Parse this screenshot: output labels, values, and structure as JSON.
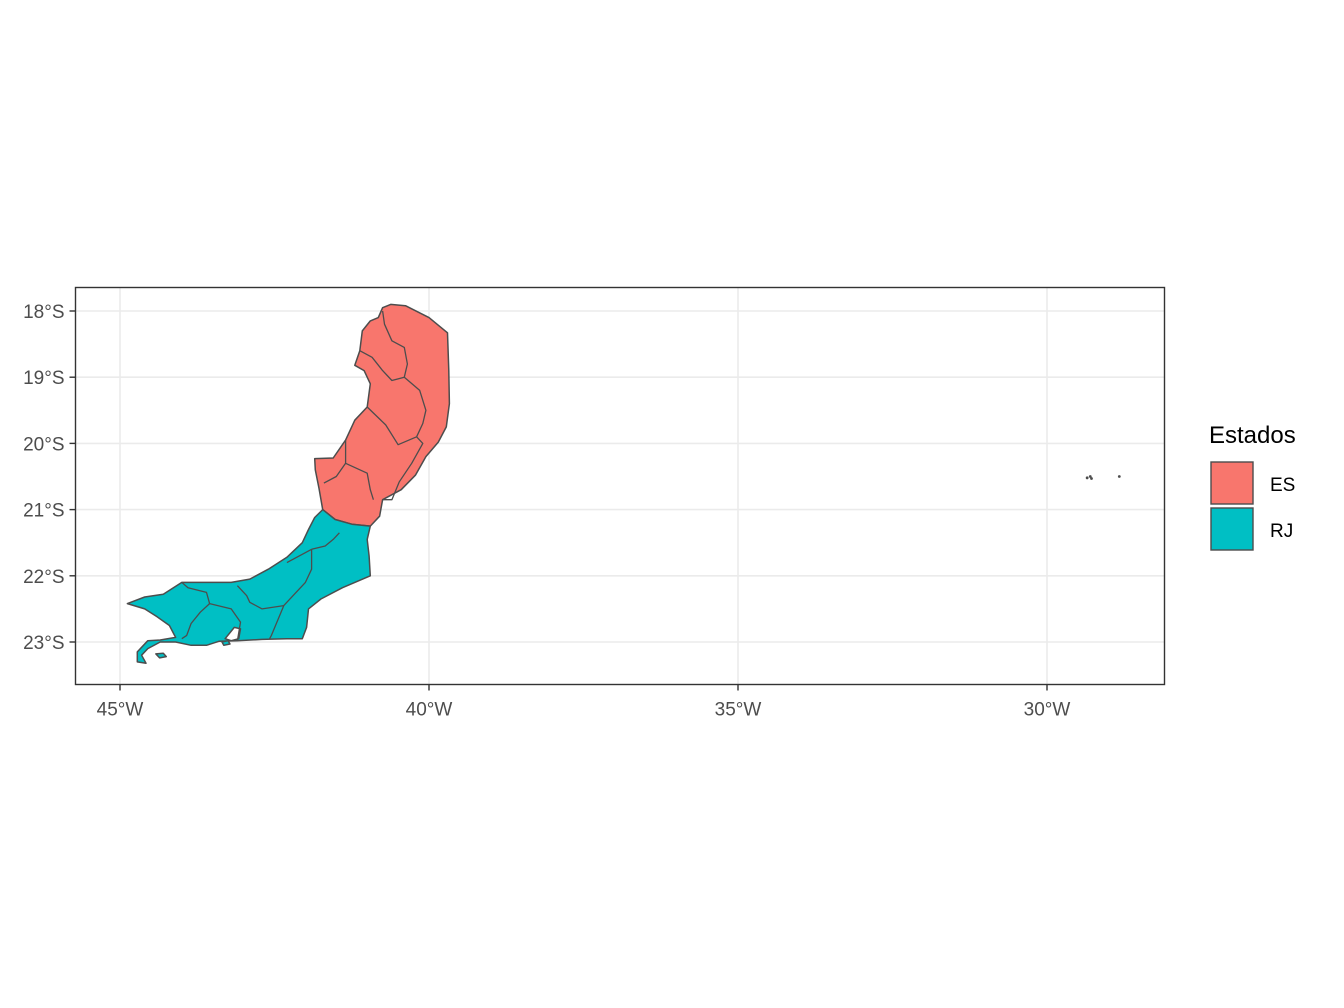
{
  "chart_data": {
    "type": "map",
    "x_ticks": [
      {
        "value": -45,
        "label": "45°W"
      },
      {
        "value": -40,
        "label": "40°W"
      },
      {
        "value": -35,
        "label": "35°W"
      },
      {
        "value": -30,
        "label": "30°W"
      }
    ],
    "y_ticks": [
      {
        "value": -18,
        "label": "18°S"
      },
      {
        "value": -19,
        "label": "19°S"
      },
      {
        "value": -20,
        "label": "20°S"
      },
      {
        "value": -21,
        "label": "21°S"
      },
      {
        "value": -22,
        "label": "22°S"
      },
      {
        "value": -23,
        "label": "23°S"
      }
    ],
    "xlim": [
      -45.7,
      -28.2
    ],
    "ylim": [
      -23.65,
      -17.6
    ],
    "grid": true,
    "legend": {
      "title": "Estados",
      "position": "right",
      "items": [
        {
          "key": "ES",
          "label": "ES",
          "color": "#F8766D"
        },
        {
          "key": "RJ",
          "label": "RJ",
          "color": "#00BFC4"
        }
      ]
    },
    "outline_color": "#4d4d4d",
    "regions": [
      {
        "state": "ES",
        "outline": [
          [
            -40.62,
            -17.9
          ],
          [
            -40.38,
            -17.92
          ],
          [
            -40.0,
            -18.1
          ],
          [
            -39.7,
            -18.33
          ],
          [
            -39.68,
            -18.9
          ],
          [
            -39.67,
            -19.4
          ],
          [
            -39.72,
            -19.75
          ],
          [
            -39.85,
            -19.98
          ],
          [
            -40.05,
            -20.2
          ],
          [
            -40.22,
            -20.48
          ],
          [
            -40.45,
            -20.7
          ],
          [
            -40.75,
            -20.85
          ],
          [
            -40.8,
            -21.1
          ],
          [
            -40.95,
            -21.25
          ],
          [
            -41.25,
            -21.22
          ],
          [
            -41.52,
            -21.15
          ],
          [
            -41.72,
            -21.0
          ],
          [
            -41.78,
            -20.68
          ],
          [
            -41.84,
            -20.4
          ],
          [
            -41.85,
            -20.23
          ],
          [
            -41.55,
            -20.22
          ],
          [
            -41.35,
            -19.95
          ],
          [
            -41.2,
            -19.65
          ],
          [
            -41.0,
            -19.45
          ],
          [
            -40.95,
            -19.1
          ],
          [
            -41.05,
            -18.9
          ],
          [
            -41.2,
            -18.82
          ],
          [
            -41.12,
            -18.6
          ],
          [
            -41.08,
            -18.3
          ],
          [
            -40.95,
            -18.15
          ],
          [
            -40.82,
            -18.1
          ],
          [
            -40.75,
            -17.95
          ],
          [
            -40.62,
            -17.9
          ]
        ]
      },
      {
        "state": "RJ",
        "outline": [
          [
            -41.72,
            -21.0
          ],
          [
            -41.52,
            -21.15
          ],
          [
            -41.25,
            -21.22
          ],
          [
            -40.95,
            -21.25
          ],
          [
            -41.0,
            -21.45
          ],
          [
            -40.97,
            -21.7
          ],
          [
            -40.95,
            -22.0
          ],
          [
            -41.4,
            -22.18
          ],
          [
            -41.75,
            -22.35
          ],
          [
            -41.95,
            -22.5
          ],
          [
            -41.98,
            -22.78
          ],
          [
            -42.05,
            -22.95
          ],
          [
            -42.3,
            -22.95
          ],
          [
            -42.7,
            -22.96
          ],
          [
            -43.1,
            -22.98
          ],
          [
            -43.4,
            -22.99
          ],
          [
            -43.6,
            -23.05
          ],
          [
            -43.85,
            -23.05
          ],
          [
            -44.1,
            -23.0
          ],
          [
            -44.35,
            -23.0
          ],
          [
            -44.55,
            -23.1
          ],
          [
            -44.65,
            -23.2
          ],
          [
            -44.58,
            -23.32
          ],
          [
            -44.72,
            -23.3
          ],
          [
            -44.72,
            -23.15
          ],
          [
            -44.55,
            -22.98
          ],
          [
            -44.35,
            -22.97
          ],
          [
            -44.1,
            -22.93
          ],
          [
            -44.2,
            -22.75
          ],
          [
            -44.4,
            -22.62
          ],
          [
            -44.6,
            -22.5
          ],
          [
            -44.88,
            -22.42
          ],
          [
            -44.6,
            -22.32
          ],
          [
            -44.3,
            -22.28
          ],
          [
            -44.0,
            -22.1
          ],
          [
            -43.5,
            -22.1
          ],
          [
            -43.2,
            -22.1
          ],
          [
            -42.9,
            -22.05
          ],
          [
            -42.6,
            -21.9
          ],
          [
            -42.3,
            -21.72
          ],
          [
            -42.05,
            -21.5
          ],
          [
            -41.95,
            -21.3
          ],
          [
            -41.85,
            -21.12
          ],
          [
            -41.72,
            -21.0
          ]
        ]
      }
    ],
    "borders": [
      [
        [
          -40.75,
          -18.0
        ],
        [
          -40.72,
          -18.2
        ],
        [
          -40.6,
          -18.45
        ],
        [
          -40.4,
          -18.55
        ],
        [
          -40.35,
          -18.8
        ],
        [
          -40.4,
          -19.0
        ]
      ],
      [
        [
          -41.12,
          -18.6
        ],
        [
          -40.92,
          -18.7
        ],
        [
          -40.75,
          -18.9
        ],
        [
          -40.6,
          -19.05
        ],
        [
          -40.4,
          -19.0
        ],
        [
          -40.15,
          -19.2
        ],
        [
          -40.05,
          -19.5
        ],
        [
          -40.1,
          -19.7
        ],
        [
          -40.2,
          -19.9
        ],
        [
          -40.5,
          -20.02
        ],
        [
          -40.7,
          -19.72
        ],
        [
          -41.0,
          -19.45
        ]
      ],
      [
        [
          -40.2,
          -19.9
        ],
        [
          -40.1,
          -20.0
        ],
        [
          -40.28,
          -20.3
        ],
        [
          -40.48,
          -20.58
        ],
        [
          -40.6,
          -20.85
        ],
        [
          -40.75,
          -20.85
        ]
      ],
      [
        [
          -41.35,
          -19.95
        ],
        [
          -41.35,
          -20.3
        ],
        [
          -41.5,
          -20.5
        ],
        [
          -41.7,
          -20.6
        ]
      ],
      [
        [
          -41.35,
          -20.3
        ],
        [
          -41.0,
          -20.45
        ],
        [
          -40.95,
          -20.7
        ],
        [
          -40.9,
          -20.85
        ]
      ],
      [
        [
          -41.9,
          -21.6
        ],
        [
          -41.68,
          -21.55
        ],
        [
          -41.55,
          -21.45
        ],
        [
          -41.45,
          -21.35
        ]
      ],
      [
        [
          -41.9,
          -21.6
        ],
        [
          -41.9,
          -21.9
        ],
        [
          -42.0,
          -22.1
        ],
        [
          -42.2,
          -22.3
        ],
        [
          -42.35,
          -22.45
        ],
        [
          -42.55,
          -22.9
        ],
        [
          -42.58,
          -22.95
        ]
      ],
      [
        [
          -41.9,
          -21.6
        ],
        [
          -42.3,
          -21.8
        ]
      ],
      [
        [
          -42.35,
          -22.45
        ],
        [
          -42.7,
          -22.5
        ],
        [
          -42.9,
          -22.4
        ],
        [
          -42.95,
          -22.3
        ],
        [
          -43.1,
          -22.15
        ]
      ],
      [
        [
          -43.1,
          -22.98
        ],
        [
          -43.05,
          -22.7
        ],
        [
          -43.2,
          -22.5
        ],
        [
          -43.55,
          -22.42
        ],
        [
          -43.6,
          -22.25
        ],
        [
          -43.9,
          -22.18
        ],
        [
          -44.0,
          -22.1
        ]
      ],
      [
        [
          -43.55,
          -22.42
        ],
        [
          -43.7,
          -22.55
        ],
        [
          -43.85,
          -22.72
        ],
        [
          -43.92,
          -22.9
        ],
        [
          -44.0,
          -22.95
        ]
      ]
    ],
    "islands": [
      {
        "state": "RJ",
        "outline": [
          [
            -44.42,
            -23.18
          ],
          [
            -44.3,
            -23.17
          ],
          [
            -44.25,
            -23.22
          ],
          [
            -44.36,
            -23.24
          ],
          [
            -44.42,
            -23.18
          ]
        ]
      },
      {
        "state": "RJ",
        "outline": [
          [
            -43.35,
            -23.0
          ],
          [
            -43.25,
            -22.98
          ],
          [
            -43.22,
            -23.03
          ],
          [
            -43.32,
            -23.05
          ],
          [
            -43.35,
            -23.0
          ]
        ]
      }
    ],
    "bay": [
      [
        -43.3,
        -22.95
      ],
      [
        -43.15,
        -22.78
      ],
      [
        -43.05,
        -22.8
      ],
      [
        -43.08,
        -22.95
      ],
      [
        -43.2,
        -22.98
      ],
      [
        -43.3,
        -22.95
      ]
    ],
    "specks": [
      [
        -29.35,
        -20.52
      ],
      [
        -29.3,
        -20.5
      ],
      [
        -29.28,
        -20.53
      ],
      [
        -28.83,
        -20.5
      ]
    ]
  }
}
